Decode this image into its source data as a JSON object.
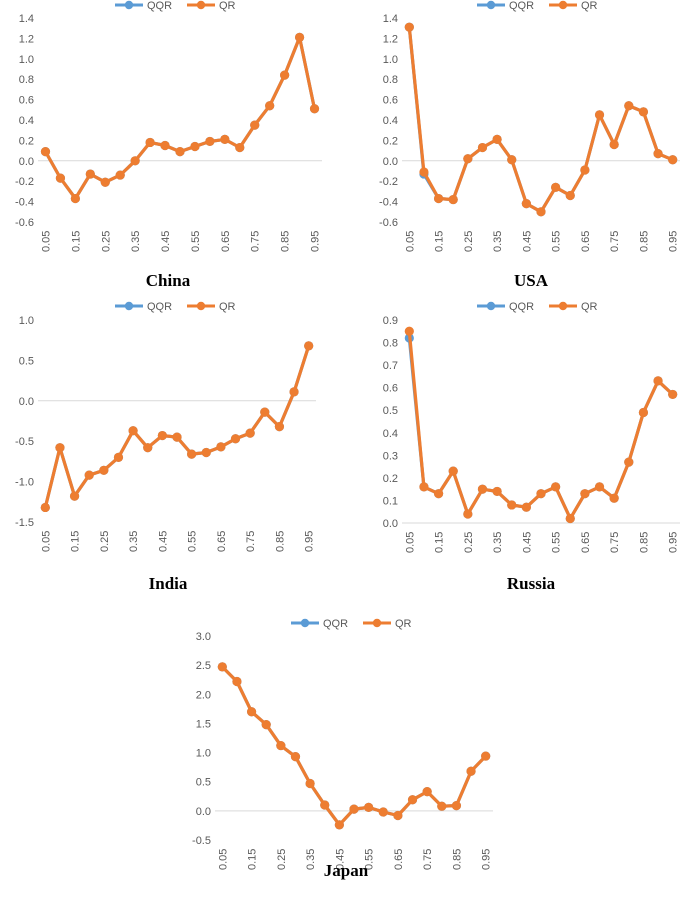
{
  "colors": {
    "qqr": "#5b9bd5",
    "qr": "#ed7d31",
    "axis": "#d9d9d9",
    "text": "#595959"
  },
  "legend": {
    "qqr": "QQR",
    "qr": "QR"
  },
  "chart_data": [
    {
      "type": "line",
      "title": "China",
      "legend_position": "top-center",
      "categories": [
        "0.05",
        "0.1",
        "0.15",
        "0.2",
        "0.25",
        "0.3",
        "0.35",
        "0.4",
        "0.45",
        "0.5",
        "0.55",
        "0.6",
        "0.65",
        "0.7",
        "0.75",
        "0.8",
        "0.85",
        "0.9",
        "0.95"
      ],
      "x_tick_labels": [
        "0.05",
        "0.15",
        "0.25",
        "0.35",
        "0.45",
        "0.55",
        "0.65",
        "0.75",
        "0.85",
        "0.95"
      ],
      "ylim": [
        -0.6,
        1.4
      ],
      "y_ticks": [
        -0.6,
        -0.4,
        -0.2,
        0,
        0.2,
        0.4,
        0.6,
        0.8,
        1.0,
        1.2,
        1.4
      ],
      "y_tick_labels": [
        "-0.6",
        "-0.4",
        "-0.2",
        "0.0",
        "0.2",
        "0.4",
        "0.6",
        "0.8",
        "1.0",
        "1.2",
        "1.4"
      ],
      "series": [
        {
          "name": "QQR",
          "values": [
            0.09,
            -0.17,
            -0.37,
            -0.13,
            -0.21,
            -0.14,
            0.0,
            0.18,
            0.15,
            0.09,
            0.14,
            0.19,
            0.21,
            0.13,
            0.35,
            0.54,
            0.84,
            1.21,
            0.51
          ]
        },
        {
          "name": "QR",
          "values": [
            0.09,
            -0.17,
            -0.37,
            -0.13,
            -0.21,
            -0.14,
            0.0,
            0.18,
            0.15,
            0.09,
            0.14,
            0.19,
            0.21,
            0.13,
            0.35,
            0.54,
            0.84,
            1.21,
            0.51
          ]
        }
      ]
    },
    {
      "type": "line",
      "title": "USA",
      "legend_position": "top-center",
      "categories": [
        "0.05",
        "0.1",
        "0.15",
        "0.2",
        "0.25",
        "0.3",
        "0.35",
        "0.4",
        "0.45",
        "0.5",
        "0.55",
        "0.6",
        "0.65",
        "0.7",
        "0.75",
        "0.8",
        "0.85",
        "0.9",
        "0.95"
      ],
      "x_tick_labels": [
        "0.05",
        "0.15",
        "0.25",
        "0.35",
        "0.45",
        "0.55",
        "0.65",
        "0.75",
        "0.85",
        "0.95"
      ],
      "ylim": [
        -0.6,
        1.4
      ],
      "y_ticks": [
        -0.6,
        -0.4,
        -0.2,
        0,
        0.2,
        0.4,
        0.6,
        0.8,
        1.0,
        1.2,
        1.4
      ],
      "y_tick_labels": [
        "-0.6",
        "-0.4",
        "-0.2",
        "0.0",
        "0.2",
        "0.4",
        "0.6",
        "0.8",
        "1.0",
        "1.2",
        "1.4"
      ],
      "series": [
        {
          "name": "QQR",
          "values": [
            1.31,
            -0.13,
            -0.37,
            -0.38,
            0.02,
            0.13,
            0.21,
            0.01,
            -0.42,
            -0.5,
            -0.26,
            -0.34,
            -0.09,
            0.45,
            0.16,
            0.54,
            0.48,
            0.07,
            0.01
          ]
        },
        {
          "name": "QR",
          "values": [
            1.31,
            -0.11,
            -0.37,
            -0.38,
            0.02,
            0.13,
            0.21,
            0.01,
            -0.42,
            -0.5,
            -0.26,
            -0.34,
            -0.09,
            0.45,
            0.16,
            0.54,
            0.48,
            0.07,
            0.01
          ]
        }
      ]
    },
    {
      "type": "line",
      "title": "India",
      "legend_position": "top-center",
      "categories": [
        "0.05",
        "0.1",
        "0.15",
        "0.2",
        "0.25",
        "0.3",
        "0.35",
        "0.4",
        "0.45",
        "0.5",
        "0.55",
        "0.6",
        "0.65",
        "0.7",
        "0.75",
        "0.8",
        "0.85",
        "0.9",
        "0.95"
      ],
      "x_tick_labels": [
        "0.05",
        "0.15",
        "0.25",
        "0.35",
        "0.45",
        "0.55",
        "0.65",
        "0.75",
        "0.85",
        "0.95"
      ],
      "ylim": [
        -1.5,
        1.0
      ],
      "y_ticks": [
        -1.5,
        -1.0,
        -0.5,
        0,
        0.5,
        1.0
      ],
      "y_tick_labels": [
        "-1.5",
        "-1.0",
        "-0.5",
        "0.0",
        "0.5",
        "1.0"
      ],
      "series": [
        {
          "name": "QQR",
          "values": [
            -1.32,
            -0.58,
            -1.18,
            -0.92,
            -0.86,
            -0.7,
            -0.37,
            -0.58,
            -0.43,
            -0.45,
            -0.66,
            -0.64,
            -0.57,
            -0.47,
            -0.4,
            -0.14,
            -0.32,
            0.11,
            0.68
          ]
        },
        {
          "name": "QR",
          "values": [
            -1.32,
            -0.58,
            -1.18,
            -0.92,
            -0.86,
            -0.7,
            -0.37,
            -0.58,
            -0.43,
            -0.45,
            -0.66,
            -0.64,
            -0.57,
            -0.47,
            -0.4,
            -0.14,
            -0.32,
            0.11,
            0.68
          ]
        }
      ]
    },
    {
      "type": "line",
      "title": "Russia",
      "legend_position": "top-center",
      "categories": [
        "0.05",
        "0.1",
        "0.15",
        "0.2",
        "0.25",
        "0.3",
        "0.35",
        "0.4",
        "0.45",
        "0.5",
        "0.55",
        "0.6",
        "0.65",
        "0.7",
        "0.75",
        "0.8",
        "0.85",
        "0.9",
        "0.95"
      ],
      "x_tick_labels": [
        "0.05",
        "0.15",
        "0.25",
        "0.35",
        "0.45",
        "0.55",
        "0.65",
        "0.75",
        "0.85",
        "0.95"
      ],
      "ylim": [
        0,
        0.9
      ],
      "y_ticks": [
        0,
        0.1,
        0.2,
        0.3,
        0.4,
        0.5,
        0.6,
        0.7,
        0.8,
        0.9
      ],
      "y_tick_labels": [
        "0.0",
        "0.1",
        "0.2",
        "0.3",
        "0.4",
        "0.5",
        "0.6",
        "0.7",
        "0.8",
        "0.9"
      ],
      "series": [
        {
          "name": "QQR",
          "values": [
            0.82,
            0.16,
            0.13,
            0.23,
            0.04,
            0.15,
            0.14,
            0.08,
            0.07,
            0.13,
            0.16,
            0.02,
            0.13,
            0.16,
            0.11,
            0.27,
            0.49,
            0.63,
            0.57
          ]
        },
        {
          "name": "QR",
          "values": [
            0.85,
            0.16,
            0.13,
            0.23,
            0.04,
            0.15,
            0.14,
            0.08,
            0.07,
            0.13,
            0.16,
            0.02,
            0.13,
            0.16,
            0.11,
            0.27,
            0.49,
            0.63,
            0.57
          ]
        }
      ]
    },
    {
      "type": "line",
      "title": "Japan",
      "legend_position": "top-center",
      "categories": [
        "0.05",
        "0.1",
        "0.15",
        "0.2",
        "0.25",
        "0.3",
        "0.35",
        "0.4",
        "0.45",
        "0.5",
        "0.55",
        "0.6",
        "0.65",
        "0.7",
        "0.75",
        "0.8",
        "0.85",
        "0.9",
        "0.95"
      ],
      "x_tick_labels": [
        "0.05",
        "0.15",
        "0.25",
        "0.35",
        "0.45",
        "0.55",
        "0.65",
        "0.75",
        "0.85",
        "0.95"
      ],
      "ylim": [
        -0.5,
        3.0
      ],
      "y_ticks": [
        -0.5,
        0,
        0.5,
        1.0,
        1.5,
        2.0,
        2.5,
        3.0
      ],
      "y_tick_labels": [
        "-0.5",
        "0.0",
        "0.5",
        "1.0",
        "1.5",
        "2.0",
        "2.5",
        "3.0"
      ],
      "series": [
        {
          "name": "QQR",
          "values": [
            2.47,
            2.22,
            1.7,
            1.48,
            1.12,
            0.93,
            0.47,
            0.1,
            -0.24,
            0.03,
            0.06,
            -0.02,
            -0.08,
            0.19,
            0.33,
            0.08,
            0.09,
            0.68,
            0.94
          ]
        },
        {
          "name": "QR",
          "values": [
            2.47,
            2.22,
            1.7,
            1.48,
            1.12,
            0.93,
            0.47,
            0.1,
            -0.24,
            0.03,
            0.06,
            -0.02,
            -0.08,
            0.19,
            0.33,
            0.08,
            0.09,
            0.68,
            0.94
          ]
        }
      ]
    }
  ]
}
